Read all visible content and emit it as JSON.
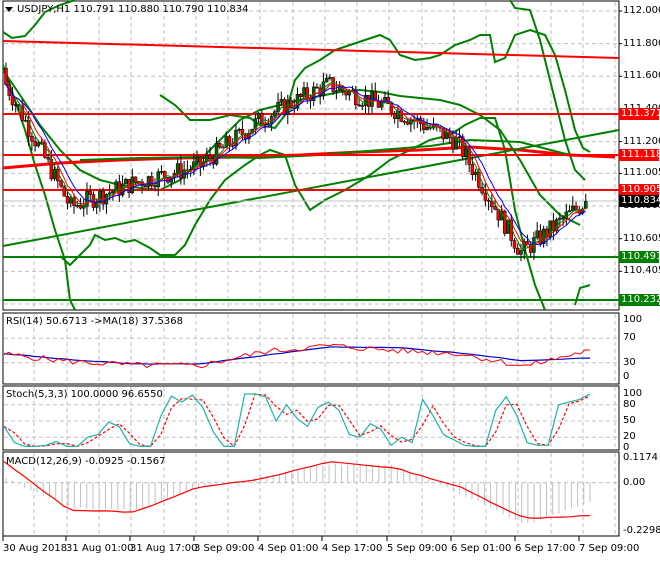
{
  "window": {
    "symbol_header": "USDJPY,H1",
    "ohlc": "110.791 110.880 110.790 110.834"
  },
  "colors": {
    "background": "#ffffff",
    "grid": "#c0c0c0",
    "resistance_line": "#ff0000",
    "support_line": "#008000",
    "bollinger": "#008000",
    "ma_blue": "#0000ff",
    "ma_red": "#ff0000",
    "ma_green": "#008000",
    "candle_bull": "#006400",
    "candle_bear": "#ff0000",
    "rsi_line": "#ff0000",
    "rsi_ma": "#0000cc",
    "stoch_main": "#20b2aa",
    "stoch_signal": "#ff0000",
    "macd_hist": "#c0c0c0",
    "macd_signal": "#ff0000",
    "current_price_tag": "#000000"
  },
  "main_panel": {
    "price_axis_labels": [
      "112.000",
      "111.800",
      "111.600",
      "111.400",
      "111.200",
      "111.005",
      "110.805",
      "110.605",
      "110.405",
      "110.205"
    ],
    "price_tags": [
      {
        "value": "111.371",
        "color": "#ff0000"
      },
      {
        "value": "111.118",
        "color": "#ff0000"
      },
      {
        "value": "110.905",
        "color": "#ff0000"
      },
      {
        "value": "110.834",
        "color": "#000000"
      },
      {
        "value": "110.491",
        "color": "#008000"
      },
      {
        "value": "110.232",
        "color": "#008000"
      }
    ]
  },
  "rsi_panel": {
    "title": "RSI(14) 50.6713  ->MA(18) 37.5368",
    "axis_labels": [
      "100",
      "70",
      "30",
      "0"
    ]
  },
  "stoch_panel": {
    "title": "Stoch(5,3,3) 100.0000 96.6550",
    "axis_labels": [
      "100",
      "80",
      "50",
      "20",
      "0"
    ]
  },
  "macd_panel": {
    "title": "MACD(12,26,9) -0.0925 -0.1567",
    "axis_labels": [
      "0.1174",
      "0.00",
      "-0.2298"
    ]
  },
  "time_axis": {
    "labels": [
      "30 Aug 2018",
      "31 Aug 01:00",
      "31 Aug 17:00",
      "3 Sep 09:00",
      "4 Sep 01:00",
      "4 Sep 17:00",
      "5 Sep 09:00",
      "6 Sep 01:00",
      "6 Sep 17:00",
      "7 Sep 09:00"
    ]
  },
  "chart_data": [
    {
      "type": "candlestick",
      "title": "USDJPY,H1",
      "subtitle": "O 110.791 H 110.880 L 110.790 C 110.834",
      "x": [
        "30 Aug 2018",
        "31 Aug 01:00",
        "31 Aug 17:00",
        "3 Sep 09:00",
        "4 Sep 01:00",
        "4 Sep 17:00",
        "5 Sep 09:00",
        "6 Sep 01:00",
        "6 Sep 17:00",
        "7 Sep 09:00"
      ],
      "close_approx": [
        111.55,
        110.8,
        110.95,
        111.05,
        111.35,
        111.55,
        111.4,
        111.2,
        110.52,
        110.834
      ],
      "ylim": [
        110.205,
        112.0
      ],
      "horizontal_levels": {
        "resistance": [
          111.371,
          111.118,
          110.905
        ],
        "support": [
          110.491,
          110.232
        ],
        "current_price": 110.834
      },
      "trendlines": [
        {
          "name": "upper red channel",
          "from": 111.78,
          "to": 111.7,
          "color": "#ff0000"
        },
        {
          "name": "rising green support",
          "from": 110.62,
          "to": 111.28,
          "color": "#008000"
        }
      ],
      "overlays": [
        "Bollinger Bands (green)",
        "Moving averages (blue, red, green)",
        "Long-term MAs (red, green)"
      ],
      "grid": true
    },
    {
      "type": "line",
      "title": "RSI(14) 50.6713 ->MA(18) 37.5368",
      "series": [
        {
          "name": "RSI(14)",
          "last": 50.6713,
          "values": [
            44,
            32,
            26,
            25,
            48,
            58,
            50,
            45,
            24,
            50.67
          ]
        },
        {
          "name": "MA(18)",
          "last": 37.5368,
          "values": [
            45,
            35,
            28,
            28,
            42,
            56,
            55,
            46,
            33,
            37.54
          ]
        }
      ],
      "ylim": [
        0,
        100
      ],
      "yticks": [
        0,
        30,
        70,
        100
      ]
    },
    {
      "type": "line",
      "title": "Stoch(5,3,3) 100.0000 96.6550",
      "series": [
        {
          "name": "%K",
          "last": 100.0,
          "values": [
            40,
            5,
            55,
            100,
            55,
            95,
            20,
            80,
            0,
            100
          ]
        },
        {
          "name": "%D",
          "last": 96.655,
          "values": [
            45,
            8,
            45,
            92,
            60,
            88,
            25,
            70,
            5,
            96.655
          ]
        }
      ],
      "ylim": [
        0,
        100
      ],
      "yticks": [
        0,
        20,
        50,
        80,
        100
      ]
    },
    {
      "type": "bar",
      "title": "MACD(12,26,9) -0.0925 -0.1567",
      "series": [
        {
          "name": "MACD histogram",
          "last": -0.0925,
          "values": [
            0.02,
            -0.12,
            -0.13,
            -0.02,
            0.03,
            0.09,
            0.08,
            -0.05,
            -0.2,
            -0.0925
          ]
        },
        {
          "name": "Signal",
          "last": -0.1567,
          "values": [
            0.1,
            -0.13,
            -0.14,
            -0.02,
            0.02,
            0.1,
            0.07,
            -0.02,
            -0.17,
            -0.1567
          ]
        }
      ],
      "ylim": [
        -0.2298,
        0.1174
      ],
      "yticks": [
        -0.2298,
        0.0,
        0.1174
      ]
    }
  ]
}
